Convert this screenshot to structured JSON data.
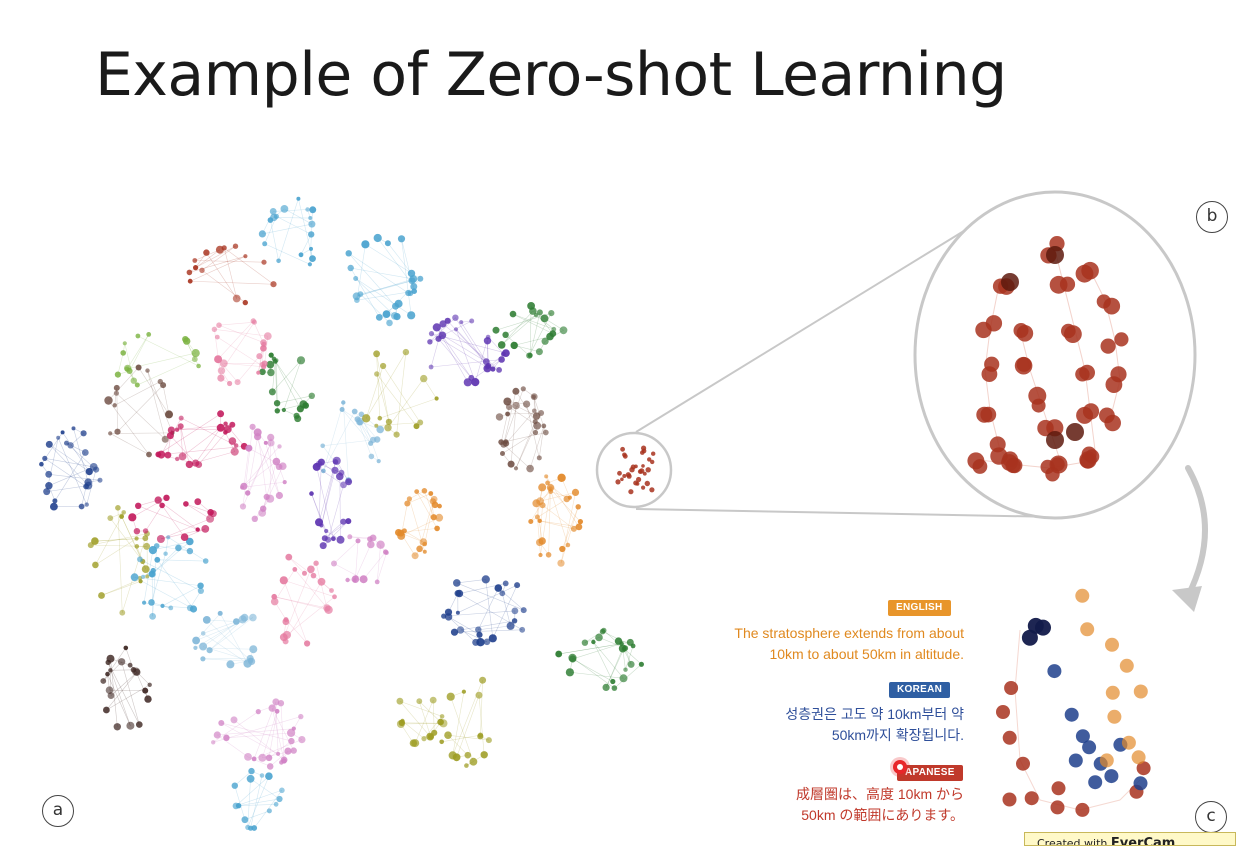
{
  "slide": {
    "title": "Example of Zero-shot Learning"
  },
  "panels": {
    "a": "a",
    "b": "b",
    "c": "c"
  },
  "languages": [
    {
      "badge": "ENGLISH",
      "badge_color": "#e8952a",
      "text_color": "#e0891f",
      "text": "The stratosphere extends from about\n10km to about 50km in altitude."
    },
    {
      "badge": "KOREAN",
      "badge_color": "#2f5fa3",
      "text_color": "#2f4f9a",
      "text": "성층권은 고도 약 10km부터 약\n50km까지 확장됩니다."
    },
    {
      "badge": "APANESE",
      "badge_color": "#c0392b",
      "text_color": "#c0392b",
      "text": "成層圏は、高度 10km から\n50km の範囲にあります。"
    }
  ],
  "watermark": {
    "prefix": "Created with ",
    "brand": "EverCam"
  },
  "colors": {
    "english": "#e38a2b",
    "korean": "#1f3f8c",
    "japanese": "#a8331f",
    "zoom_circle": "#c8c8c8",
    "arrow": "#c8c8c8"
  },
  "icons": {
    "arrow": "curved-arrow-icon",
    "recording": "record-dot-icon"
  }
}
